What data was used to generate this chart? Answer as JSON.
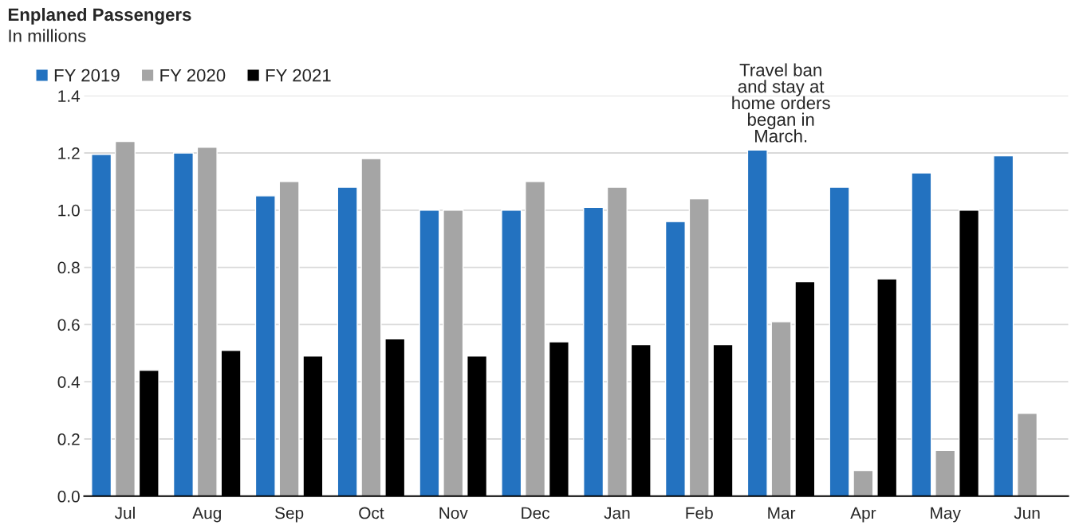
{
  "chart_data": {
    "type": "bar",
    "title": "Enplaned Passengers",
    "subtitle": "In millions",
    "categories": [
      "Jul",
      "Aug",
      "Sep",
      "Oct",
      "Nov",
      "Dec",
      "Jan",
      "Feb",
      "Mar",
      "Apr",
      "May",
      "Jun"
    ],
    "series": [
      {
        "name": "FY 2019",
        "color": "#2372c0",
        "values": [
          1.195,
          1.2,
          1.05,
          1.08,
          1.0,
          1.0,
          1.01,
          0.96,
          1.21,
          1.08,
          1.13,
          1.19
        ]
      },
      {
        "name": "FY 2020",
        "color": "#a5a5a5",
        "values": [
          1.24,
          1.22,
          1.1,
          1.18,
          1.0,
          1.1,
          1.08,
          1.04,
          0.61,
          0.09,
          0.16,
          0.29
        ]
      },
      {
        "name": "FY 2021",
        "color": "#000000",
        "values": [
          0.44,
          0.51,
          0.49,
          0.55,
          0.49,
          0.54,
          0.53,
          0.53,
          0.75,
          0.76,
          1.0,
          null
        ]
      }
    ],
    "annotations": [
      "Travel ban\nand stay at\nhome orders\nbegan in\nMarch."
    ],
    "ylim": [
      0,
      1.4
    ],
    "yticks": [
      {
        "value": 0,
        "label": "0.0"
      },
      0.2,
      0.4,
      0.6,
      0.8,
      {
        "value": 1,
        "label": "1.0"
      },
      1.2,
      1.4
    ],
    "grid": "y",
    "legend": "top left"
  }
}
